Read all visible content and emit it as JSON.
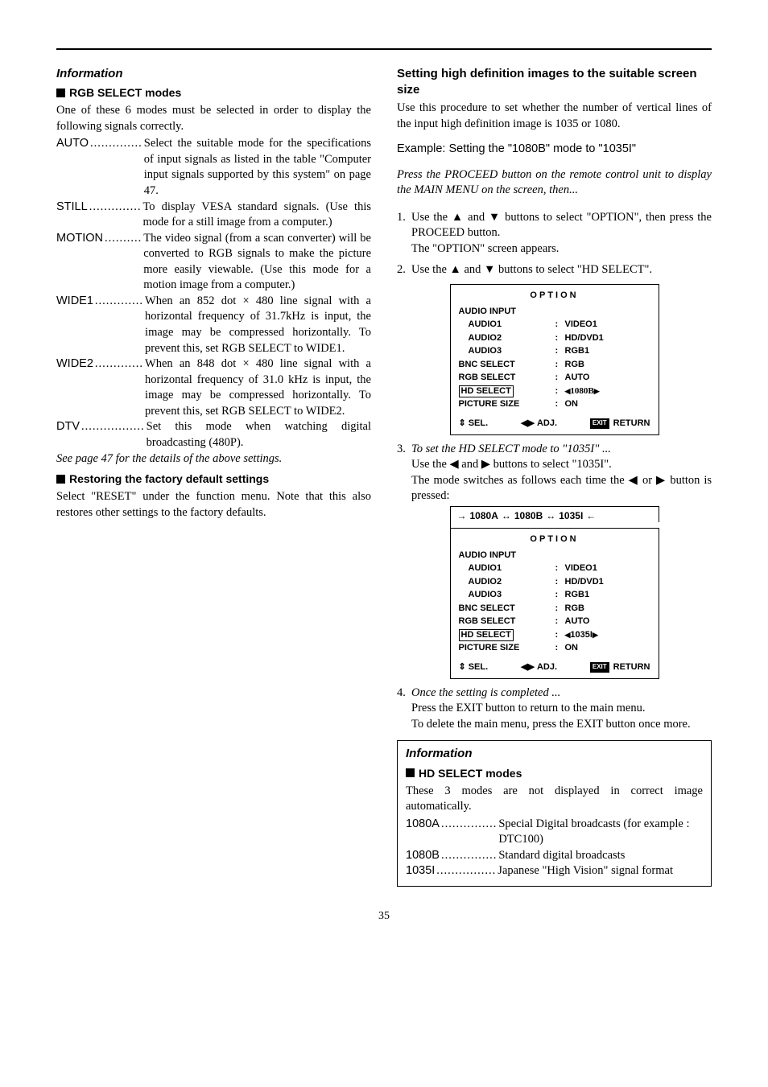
{
  "left": {
    "infoHeader": "Information",
    "rgbHeader": "RGB SELECT modes",
    "intro": "One of these 6 modes must be selected in order to display the following signals correctly.",
    "modes": [
      {
        "term": "AUTO",
        "dots": "..............",
        "val": "Select the suitable mode for the specifications of input signals as listed in the table \"Computer input signals supported by this system\" on page 47."
      },
      {
        "term": "STILL",
        "dots": "..............",
        "val": "To display VESA standard signals. (Use this mode for a still image from a computer.)"
      },
      {
        "term": "MOTION",
        "dots": "..........",
        "val": "The video signal (from a scan converter) will be converted to RGB signals to make the picture more easily viewable. (Use this mode for a motion image from a computer.)"
      },
      {
        "term": "WIDE1",
        "dots": ".............",
        "val": "When an 852 dot × 480 line signal with a horizontal frequency of 31.7kHz is input, the image may be compressed horizontally. To prevent this, set RGB SELECT to WIDE1."
      },
      {
        "term": "WIDE2",
        "dots": ".............",
        "val": "When an 848 dot × 480 line signal with a horizontal frequency of 31.0 kHz is input, the image may be compressed horizontally. To prevent this, set RGB SELECT to WIDE2."
      },
      {
        "term": "DTV",
        "dots": ".................",
        "val": "Set this mode when watching digital broadcasting (480P)."
      }
    ],
    "seePage": "See page 47 for the details of the above settings.",
    "restoreHeader": "Restoring the factory default settings",
    "restoreText": "Select \"RESET\" under the function menu. Note that this also restores other settings to the factory defaults."
  },
  "right": {
    "title": "Setting high definition images to the suitable screen size",
    "intro": "Use this procedure to set whether the number of vertical lines of the input high definition image is 1035 or 1080.",
    "example": "Example: Setting the \"1080B\" mode to \"1035I\"",
    "press": "Press the PROCEED button on the remote control unit to display the MAIN MENU on the screen, then...",
    "step1a": "Use the ▲ and ▼ buttons to select \"OPTION\", then press the PROCEED button.",
    "step1b": "The \"OPTION\" screen appears.",
    "step2": "Use the ▲ and ▼ buttons to select \"HD SELECT\".",
    "step3a": "To set the HD SELECT mode to \"1035I\" ...",
    "step3b": "Use the ◀ and ▶ buttons to select \"1035I\".",
    "step3c": "The mode switches as follows each time the ◀ or ▶ button is pressed:",
    "cycle": {
      "a": "1080A",
      "b": "1080B",
      "c": "1035I"
    },
    "step4a": "Once the setting is completed ...",
    "step4b": "Press the EXIT button to return to the main menu.",
    "step4c": "To delete the main menu, press the EXIT button once more.",
    "osd": {
      "title": "OPTION",
      "rows": [
        {
          "label": "AUDIO INPUT",
          "indent": false,
          "colon": "",
          "val": ""
        },
        {
          "label": "AUDIO1",
          "indent": true,
          "colon": ":",
          "val": "VIDEO1"
        },
        {
          "label": "AUDIO2",
          "indent": true,
          "colon": ":",
          "val": "HD/DVD1"
        },
        {
          "label": "AUDIO3",
          "indent": true,
          "colon": ":",
          "val": "RGB1"
        },
        {
          "label": "BNC SELECT",
          "indent": false,
          "colon": ":",
          "val": "RGB"
        },
        {
          "label": "RGB SELECT",
          "indent": false,
          "colon": ":",
          "val": "AUTO"
        }
      ],
      "hdRow1": {
        "label": "HD SELECT",
        "val": "1080B"
      },
      "hdRow2": {
        "label": "HD SELECT",
        "val": "1035I"
      },
      "picRow": {
        "label": "PICTURE SIZE",
        "colon": ":",
        "val": "ON"
      },
      "footer": {
        "sel": "SEL.",
        "adj": "ADJ.",
        "exit": "EXIT",
        "ret": "RETURN"
      }
    },
    "infoBox": {
      "header": "Information",
      "sub": "HD SELECT modes",
      "intro": "These 3 modes are not displayed in correct image automatically.",
      "items": [
        {
          "term": "1080A",
          "dots": "...............",
          "val": "Special Digital broadcasts (for example : DTC100)"
        },
        {
          "term": "1080B",
          "dots": "...............",
          "val": "Standard digital broadcasts"
        },
        {
          "term": "1035I",
          "dots": "................",
          "val": "Japanese \"High Vision\" signal format"
        }
      ]
    }
  },
  "pageNum": "35"
}
